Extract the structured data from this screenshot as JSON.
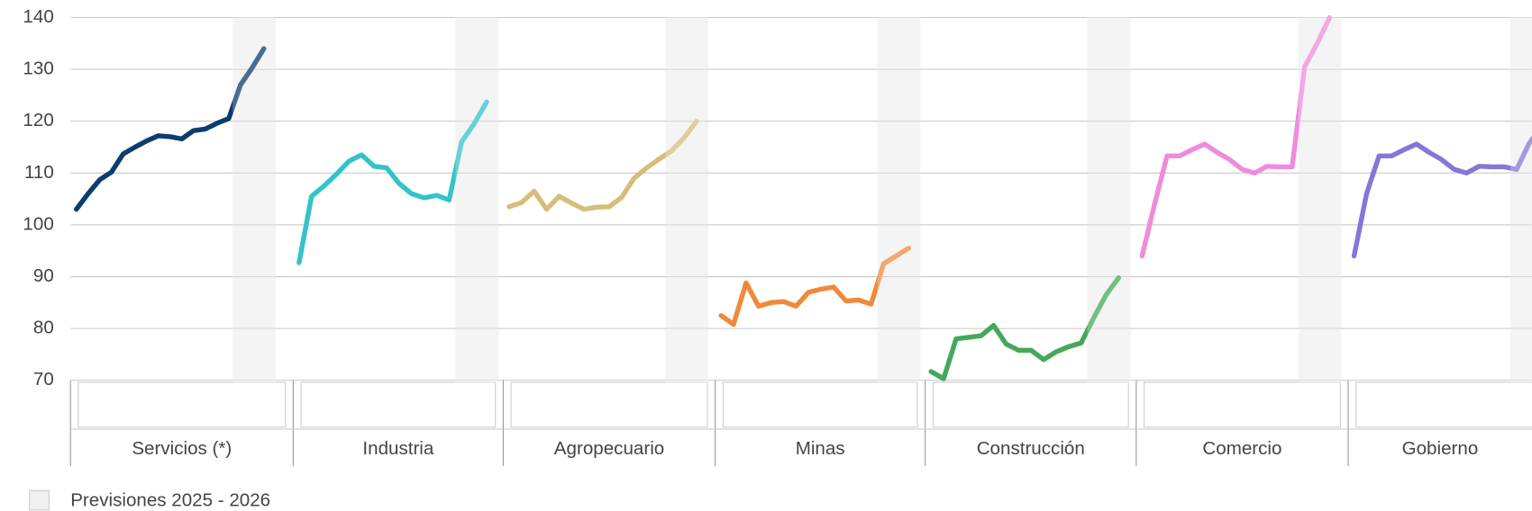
{
  "chart_data": {
    "type": "line",
    "ylim": [
      70,
      140
    ],
    "yticks": [
      70,
      80,
      90,
      100,
      110,
      120,
      130,
      140
    ],
    "grid": true,
    "forecast_label": "Previsiones 2025 - 2026",
    "series": [
      {
        "name": "Servicios (*)",
        "color": "#0d3c6e",
        "values": [
          103,
          106,
          108.7,
          110.2,
          113.7,
          115,
          116.2,
          117.2,
          117,
          116.6,
          118.2,
          118.5,
          119.6,
          120.5,
          127,
          130.3,
          134
        ]
      },
      {
        "name": "Industria",
        "color": "#33c3c9",
        "values": [
          92.7,
          105.5,
          107.5,
          109.8,
          112.3,
          113.5,
          111.3,
          111,
          108,
          106,
          105.2,
          105.7,
          104.8,
          116,
          119.5,
          123.7
        ]
      },
      {
        "name": "Agropecuario",
        "color": "#d6bd7a",
        "values": [
          103.5,
          104.3,
          106.5,
          103,
          105.5,
          104.2,
          103,
          103.4,
          103.5,
          105.3,
          109,
          111,
          112.7,
          114.3,
          116.8,
          120
        ]
      },
      {
        "name": "Minas",
        "color": "#ef8a3c",
        "values": [
          82.5,
          80.8,
          88.8,
          84.3,
          85,
          85.2,
          84.3,
          87,
          87.6,
          88,
          85.3,
          85.5,
          84.7,
          92.5,
          94,
          95.5
        ]
      },
      {
        "name": "Construcción",
        "color": "#45a85a",
        "values": [
          71.7,
          70.3,
          78,
          78.3,
          78.6,
          80.6,
          77,
          75.8,
          75.8,
          74,
          75.5,
          76.5,
          77.2,
          82,
          86.5,
          89.8
        ]
      },
      {
        "name": "Comercio",
        "color": "#ef8bdc",
        "values": [
          94,
          104,
          113.3,
          113.3,
          114.5,
          115.6,
          114,
          112.6,
          110.7,
          110,
          111.3,
          111.2,
          111.2,
          130.5,
          135,
          140
        ]
      },
      {
        "name": "Gobierno",
        "color": "#8577d8",
        "values": [
          94,
          106,
          113.3,
          113.3,
          114.5,
          115.6,
          114,
          112.6,
          110.7,
          110,
          111.3,
          111.2,
          111.2,
          110.7,
          115.7,
          119
        ]
      }
    ]
  }
}
